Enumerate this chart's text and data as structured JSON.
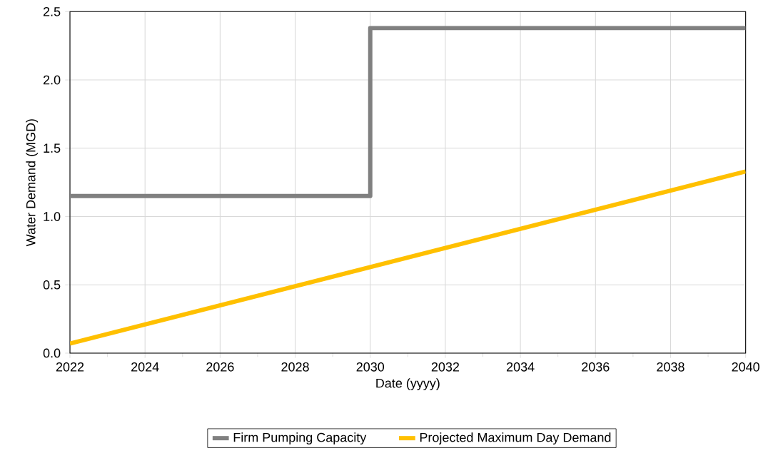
{
  "chart_data": {
    "type": "line",
    "xlabel": "Date (yyyy)",
    "ylabel": "Water Demand (MGD)",
    "series": [
      {
        "name": "Firm Pumping Capacity",
        "type": "step",
        "color": "#808080",
        "x": [
          2022,
          2030,
          2040
        ],
        "values": [
          1.15,
          2.38,
          2.38
        ]
      },
      {
        "name": "Projected Maximum Day Demand",
        "color": "#ffc000",
        "x": [
          2022,
          2040
        ],
        "values": [
          0.07,
          1.33
        ]
      }
    ],
    "xlim": [
      2022,
      2040
    ],
    "xticks": [
      2022,
      2024,
      2026,
      2028,
      2030,
      2032,
      2034,
      2036,
      2038,
      2040
    ],
    "ylim": [
      0,
      2.5
    ],
    "yticks": [
      {
        "value": 0,
        "label": "0.0"
      },
      {
        "value": 0.5,
        "label": "0.5"
      },
      {
        "value": 1,
        "label": "1.0"
      },
      {
        "value": 1.5,
        "label": "1.5"
      },
      {
        "value": 2,
        "label": "2.0"
      },
      {
        "value": 2.5,
        "label": "2.5"
      }
    ],
    "grid": true,
    "legend": "bottom",
    "marker": "none",
    "line_style": "solid"
  }
}
